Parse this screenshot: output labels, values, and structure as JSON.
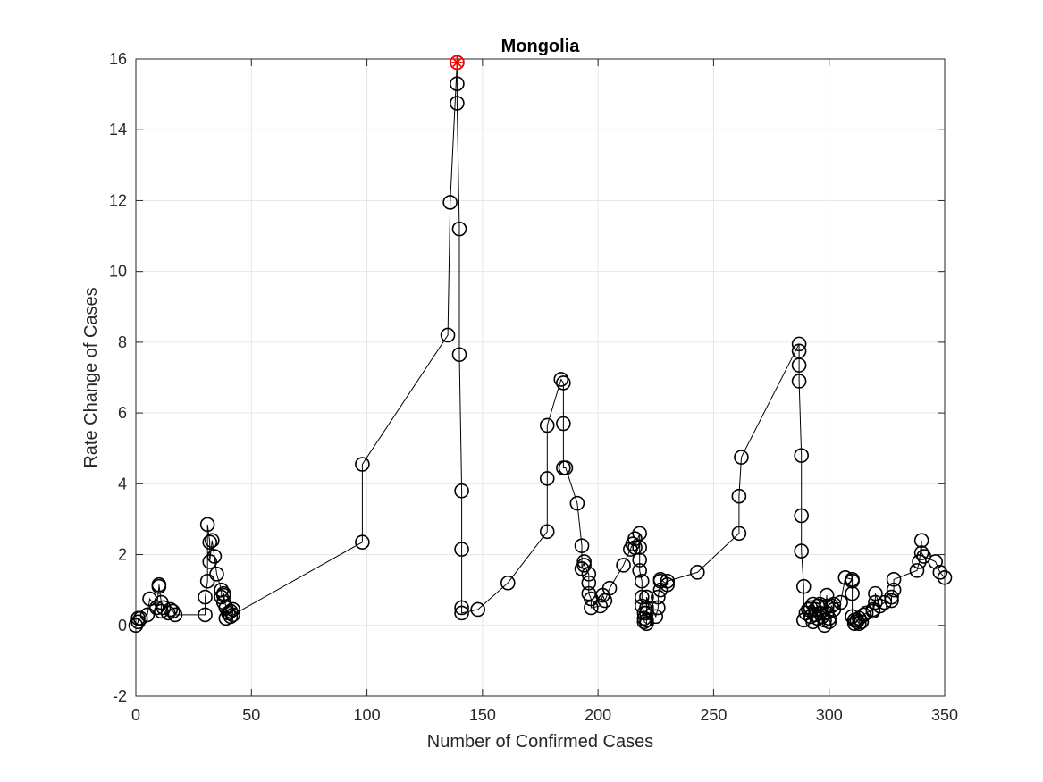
{
  "chart_data": {
    "type": "line",
    "title": "Mongolia",
    "xlabel": "Number of Confirmed Cases",
    "ylabel": "Rate Change of Cases",
    "xlim": [
      0,
      350
    ],
    "ylim": [
      -2,
      16
    ],
    "xticks": [
      0,
      50,
      100,
      150,
      200,
      250,
      300,
      350
    ],
    "yticks": [
      -2,
      0,
      2,
      4,
      6,
      8,
      10,
      12,
      14,
      16
    ],
    "grid": true,
    "marker": "open-circle",
    "colors": {
      "line": "#000000",
      "marker": "#000000",
      "highlight": "#ff0000",
      "grid": "#e6e6e6",
      "axes": "#262626"
    },
    "series": [
      {
        "x": [
          0,
          1,
          1,
          2,
          5,
          6,
          9,
          10,
          10,
          11,
          11,
          12,
          14,
          15,
          16,
          17,
          30,
          30,
          31,
          31,
          32,
          32,
          33,
          34,
          35,
          37,
          37,
          38,
          38,
          38,
          39,
          39,
          40,
          41,
          41,
          42,
          42,
          98,
          98,
          135,
          136,
          139,
          139,
          139,
          140,
          140,
          141,
          141,
          141,
          141,
          148,
          161,
          178,
          178,
          178,
          184,
          185,
          185,
          185,
          186,
          191,
          193,
          193,
          194,
          194,
          196,
          196,
          196,
          197,
          197,
          201,
          202,
          203,
          205,
          211,
          214,
          215,
          216,
          216,
          218,
          218,
          218,
          218,
          219,
          219,
          219,
          220,
          220,
          220,
          221,
          221,
          221,
          221,
          221,
          225,
          226,
          226,
          227,
          227,
          227,
          230,
          230,
          243,
          261,
          261,
          262,
          287,
          287,
          287,
          287,
          288,
          288,
          288,
          289,
          289,
          290,
          291,
          292,
          292,
          293,
          293,
          294,
          294,
          295,
          295,
          296,
          296,
          297,
          298,
          298,
          299,
          299,
          299,
          300,
          300,
          301,
          302,
          302,
          305,
          307,
          310,
          310,
          310,
          310,
          311,
          311,
          312,
          312,
          313,
          313,
          314,
          315,
          316,
          319,
          319,
          320,
          320,
          322,
          324,
          327,
          327,
          328,
          328,
          338,
          339,
          340,
          340,
          341,
          346,
          348,
          350
        ],
        "y": [
          0.0,
          0.1,
          0.2,
          0.2,
          0.3,
          0.75,
          0.5,
          1.1,
          1.15,
          0.65,
          0.4,
          0.5,
          0.35,
          0.45,
          0.4,
          0.3,
          0.3,
          0.8,
          1.25,
          2.85,
          2.35,
          1.8,
          2.4,
          1.95,
          1.45,
          1.0,
          0.8,
          0.85,
          0.65,
          0.9,
          0.5,
          0.2,
          0.35,
          0.4,
          0.25,
          0.45,
          0.3,
          2.35,
          4.55,
          8.2,
          11.95,
          15.9,
          15.3,
          14.75,
          11.2,
          7.65,
          3.8,
          2.15,
          0.5,
          0.35,
          0.45,
          1.2,
          2.65,
          4.15,
          5.65,
          6.95,
          6.85,
          5.7,
          4.45,
          4.45,
          3.45,
          2.25,
          1.6,
          1.8,
          1.7,
          1.45,
          1.2,
          0.9,
          0.75,
          0.5,
          0.55,
          0.85,
          0.7,
          1.05,
          1.7,
          2.15,
          2.3,
          2.45,
          2.2,
          2.6,
          2.2,
          1.85,
          1.55,
          1.25,
          0.8,
          0.55,
          0.35,
          0.2,
          0.1,
          0.05,
          0.15,
          0.35,
          0.5,
          0.8,
          0.25,
          0.5,
          0.8,
          1.25,
          1.0,
          1.3,
          1.15,
          1.25,
          1.5,
          2.6,
          3.65,
          4.75,
          7.95,
          7.75,
          7.35,
          6.9,
          4.8,
          3.1,
          2.1,
          1.1,
          0.15,
          0.35,
          0.45,
          0.5,
          0.25,
          0.1,
          0.6,
          0.3,
          0.45,
          0.55,
          0.2,
          0.35,
          0.6,
          0.25,
          0.15,
          0.0,
          0.85,
          0.55,
          0.35,
          0.1,
          0.2,
          0.55,
          0.45,
          0.6,
          0.65,
          1.35,
          1.3,
          1.25,
          0.9,
          0.25,
          0.15,
          0.05,
          0.1,
          0.15,
          0.05,
          0.2,
          0.1,
          0.3,
          0.35,
          0.45,
          0.4,
          0.65,
          0.9,
          0.55,
          0.65,
          0.7,
          0.8,
          1.0,
          1.3,
          1.55,
          1.8,
          2.4,
          2.05,
          1.95,
          1.8,
          1.5,
          1.35
        ]
      }
    ],
    "highlight_point": {
      "x": 139,
      "y": 15.9,
      "marker": "red-asterisk-circle"
    }
  }
}
